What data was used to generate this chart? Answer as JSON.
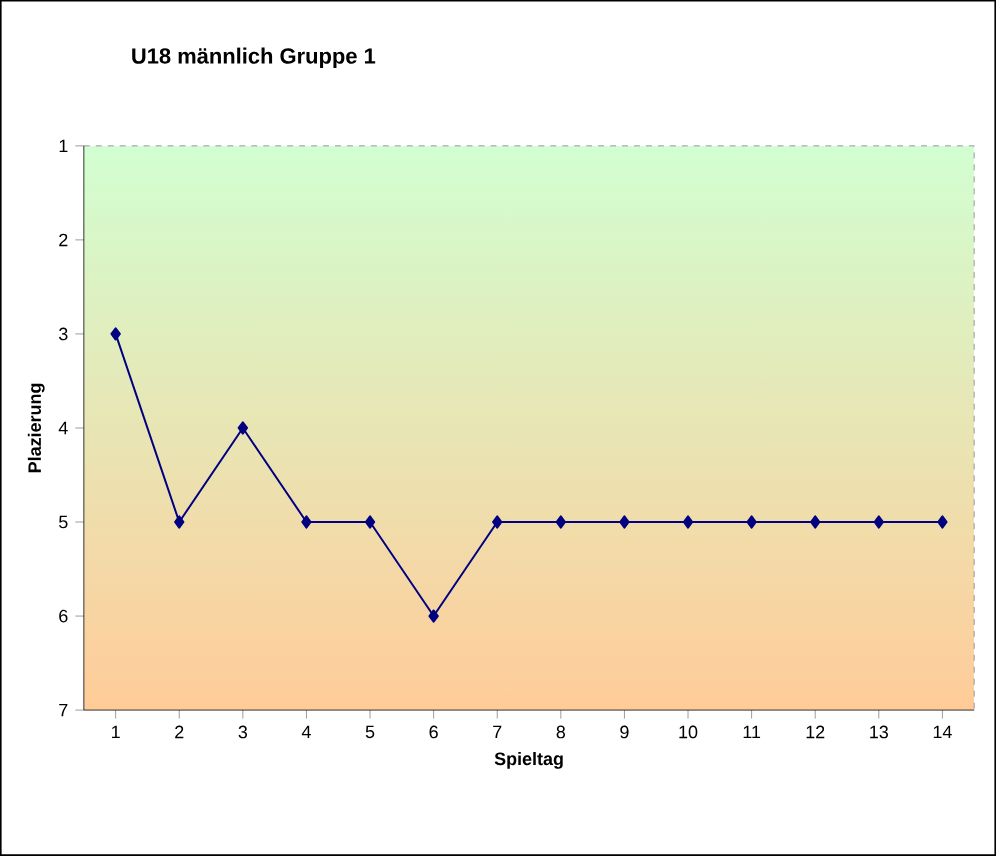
{
  "chart_data": {
    "type": "line",
    "title": "U18 männlich Gruppe 1",
    "xlabel": "Spieltag",
    "ylabel": "Plazierung",
    "categories": [
      "1",
      "2",
      "3",
      "4",
      "5",
      "6",
      "7",
      "8",
      "9",
      "10",
      "11",
      "12",
      "13",
      "14"
    ],
    "values": [
      3,
      5,
      4,
      5,
      5,
      6,
      5,
      5,
      5,
      5,
      5,
      5,
      5,
      5
    ],
    "color": "#000080",
    "marker": "diamond",
    "line_style": "solid",
    "ylim": [
      7,
      1
    ],
    "yticks": [
      1,
      2,
      3,
      4,
      5,
      6,
      7
    ],
    "grid": false
  }
}
